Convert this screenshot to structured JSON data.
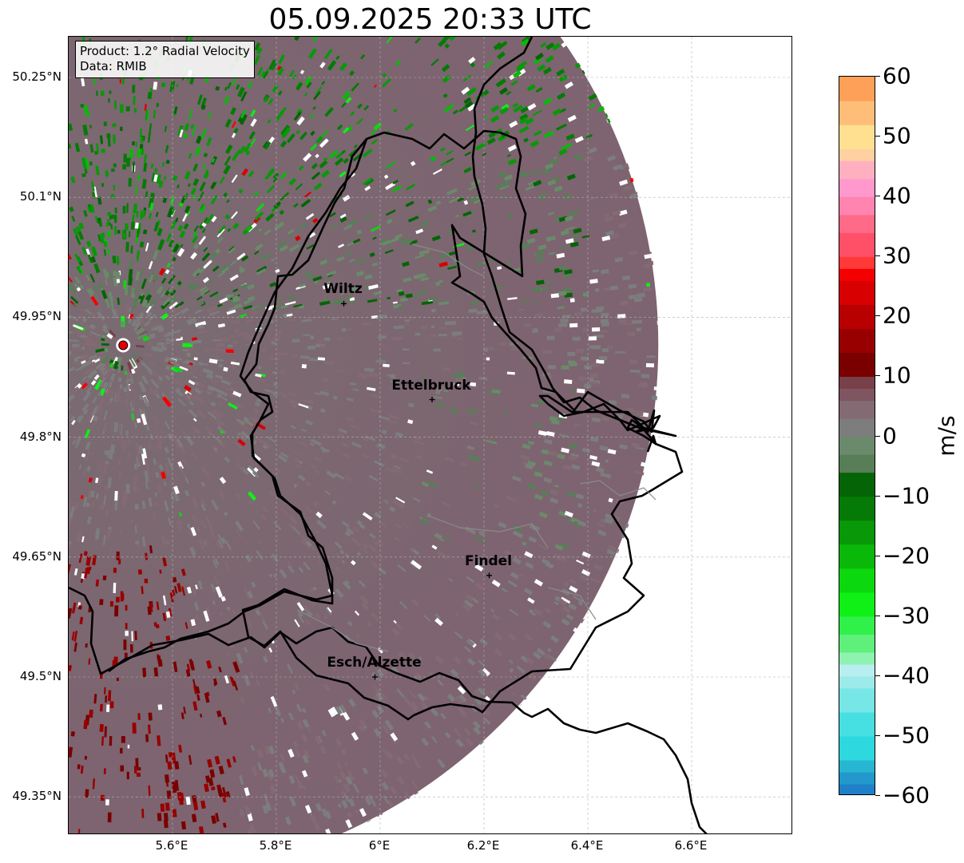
{
  "title": "05.09.2025 20:33 UTC",
  "info_box": {
    "product": "Product: 1.2° Radial Velocity",
    "source": "Data: RMIB"
  },
  "lat_ticks": [
    {
      "label": "50.25°N",
      "value": 50.25
    },
    {
      "label": "50.1°N",
      "value": 50.1
    },
    {
      "label": "49.95°N",
      "value": 49.95
    },
    {
      "label": "49.8°N",
      "value": 49.8
    },
    {
      "label": "49.65°N",
      "value": 49.65
    },
    {
      "label": "49.5°N",
      "value": 49.5
    },
    {
      "label": "49.35°N",
      "value": 49.35
    }
  ],
  "lon_ticks": [
    {
      "label": "5.6°E",
      "value": 5.6
    },
    {
      "label": "5.8°E",
      "value": 5.8
    },
    {
      "label": "6°E",
      "value": 6.0
    },
    {
      "label": "6.2°E",
      "value": 6.2
    },
    {
      "label": "6.4°E",
      "value": 6.4
    },
    {
      "label": "6.6°E",
      "value": 6.6
    }
  ],
  "cities": [
    {
      "name": "Wiltz",
      "lon": 5.93,
      "lat": 49.967
    },
    {
      "name": "Ettelbruck",
      "lon": 6.1,
      "lat": 49.847
    },
    {
      "name": "Findel",
      "lon": 6.21,
      "lat": 49.627
    },
    {
      "name": "Esch/Alzette",
      "lon": 5.99,
      "lat": 49.5
    }
  ],
  "radar_site": {
    "lon": 5.505,
    "lat": 49.915,
    "color": "#e80000"
  },
  "colorbar": {
    "label": "m/s",
    "min": -60,
    "max": 60,
    "ticks": [
      {
        "label": "60",
        "value": 60
      },
      {
        "label": "50",
        "value": 50
      },
      {
        "label": "40",
        "value": 40
      },
      {
        "label": "30",
        "value": 30
      },
      {
        "label": "20",
        "value": 20
      },
      {
        "label": "10",
        "value": 10
      },
      {
        "label": "0",
        "value": 0
      },
      {
        "label": "−10",
        "value": -10
      },
      {
        "label": "−20",
        "value": -20
      },
      {
        "label": "−30",
        "value": -30
      },
      {
        "label": "−40",
        "value": -40
      },
      {
        "label": "−50",
        "value": -50
      },
      {
        "label": "−60",
        "value": -60
      }
    ],
    "bands": [
      {
        "from": -60,
        "to": -58,
        "color": "#1f7fc8"
      },
      {
        "from": -58,
        "to": -56,
        "color": "#2298cc"
      },
      {
        "from": -56,
        "to": -54,
        "color": "#27b6d2"
      },
      {
        "from": -54,
        "to": -50,
        "color": "#2ed8df"
      },
      {
        "from": -50,
        "to": -46,
        "color": "#46e0e2"
      },
      {
        "from": -46,
        "to": -42,
        "color": "#76e6e6"
      },
      {
        "from": -42,
        "to": -40,
        "color": "#9ceaea"
      },
      {
        "from": -40,
        "to": -38,
        "color": "#b8eeef"
      },
      {
        "from": -38,
        "to": -36,
        "color": "#8ef2b0"
      },
      {
        "from": -36,
        "to": -33,
        "color": "#5ef07a"
      },
      {
        "from": -33,
        "to": -30,
        "color": "#30f04a"
      },
      {
        "from": -30,
        "to": -26,
        "color": "#0ef016"
      },
      {
        "from": -26,
        "to": -22,
        "color": "#0cd80e"
      },
      {
        "from": -22,
        "to": -18,
        "color": "#0ab80a"
      },
      {
        "from": -18,
        "to": -14,
        "color": "#089808"
      },
      {
        "from": -14,
        "to": -10,
        "color": "#067a06"
      },
      {
        "from": -10,
        "to": -6,
        "color": "#056405"
      },
      {
        "from": -6,
        "to": -3,
        "color": "#577e57"
      },
      {
        "from": -3,
        "to": 0,
        "color": "#6b8a6b"
      },
      {
        "from": 0,
        "to": 3,
        "color": "#7d7d7d"
      },
      {
        "from": 3,
        "to": 6,
        "color": "#846a72"
      },
      {
        "from": 6,
        "to": 8,
        "color": "#7e5560"
      },
      {
        "from": 8,
        "to": 10,
        "color": "#784048"
      },
      {
        "from": 10,
        "to": 14,
        "color": "#7a0000"
      },
      {
        "from": 14,
        "to": 18,
        "color": "#980000"
      },
      {
        "from": 18,
        "to": 22,
        "color": "#b80000"
      },
      {
        "from": 22,
        "to": 26,
        "color": "#d80000"
      },
      {
        "from": 26,
        "to": 28,
        "color": "#f40000"
      },
      {
        "from": 28,
        "to": 30,
        "color": "#ff3838"
      },
      {
        "from": 30,
        "to": 34,
        "color": "#ff5068"
      },
      {
        "from": 34,
        "to": 37,
        "color": "#ff6a88"
      },
      {
        "from": 37,
        "to": 40,
        "color": "#ff84b0"
      },
      {
        "from": 40,
        "to": 43,
        "color": "#ff98cc"
      },
      {
        "from": 43,
        "to": 46,
        "color": "#ffb0c0"
      },
      {
        "from": 46,
        "to": 48,
        "color": "#ffd0a0"
      },
      {
        "from": 48,
        "to": 52,
        "color": "#ffe090"
      },
      {
        "from": 52,
        "to": 56,
        "color": "#ffbe78"
      },
      {
        "from": 56,
        "to": 60,
        "color": "#ffa058"
      }
    ]
  },
  "colors": {
    "border": "#000000",
    "river": "#8a8a8a",
    "grid": "#b0b0b0"
  }
}
